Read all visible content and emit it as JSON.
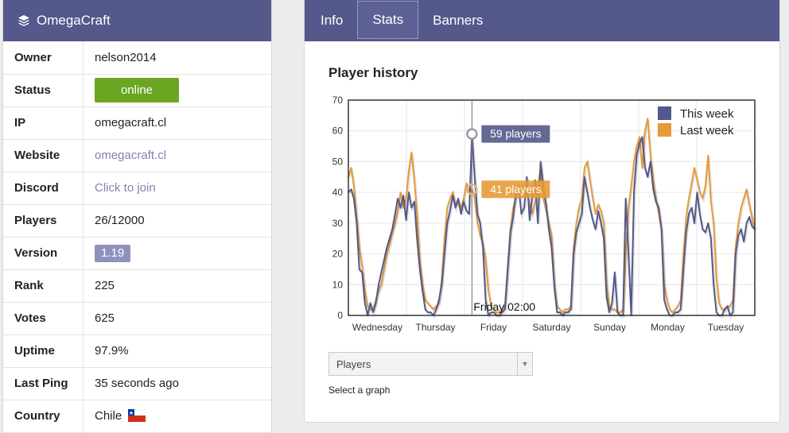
{
  "server": {
    "name": "OmegaCraft"
  },
  "info": [
    {
      "key": "Owner",
      "value": "nelson2014",
      "type": "text"
    },
    {
      "key": "Status",
      "value": "online",
      "type": "status"
    },
    {
      "key": "IP",
      "value": "omegacraft.cl",
      "type": "text"
    },
    {
      "key": "Website",
      "value": "omegacraft.cl",
      "type": "link"
    },
    {
      "key": "Discord",
      "value": "Click to join",
      "type": "link"
    },
    {
      "key": "Players",
      "value": "26/12000",
      "type": "text"
    },
    {
      "key": "Version",
      "value": "1.19",
      "type": "badge"
    },
    {
      "key": "Rank",
      "value": "225",
      "type": "text"
    },
    {
      "key": "Votes",
      "value": "625",
      "type": "text"
    },
    {
      "key": "Uptime",
      "value": "97.9%",
      "type": "text"
    },
    {
      "key": "Last Ping",
      "value": "35 seconds ago",
      "type": "text"
    },
    {
      "key": "Country",
      "value": "Chile",
      "type": "flag"
    }
  ],
  "tabs": [
    {
      "label": "Info",
      "active": false
    },
    {
      "label": "Stats",
      "active": true
    },
    {
      "label": "Banners",
      "active": false
    }
  ],
  "chart_title": "Player history",
  "select": {
    "value": "Players",
    "caption": "Select a graph"
  },
  "colors": {
    "header": "#54588a",
    "this_week": "#54588a",
    "last_week": "#e59b37",
    "status": "#6aa622"
  },
  "chart_data": {
    "type": "line",
    "ylim": [
      0,
      70
    ],
    "yticks": [
      0,
      10,
      20,
      30,
      40,
      50,
      60,
      70
    ],
    "x_labels": [
      "Wednesday",
      "Thursday",
      "Friday",
      "Saturday",
      "Sunday",
      "Monday",
      "Tuesday"
    ],
    "legend": {
      "placement": "top-right"
    },
    "grid": true,
    "series": [
      {
        "name": "This week",
        "values": [
          40,
          41,
          38,
          30,
          15,
          14,
          4,
          0,
          4,
          1,
          4,
          10,
          14,
          18,
          22,
          25,
          28,
          33,
          38,
          35,
          39,
          31,
          40,
          35,
          37,
          25,
          15,
          8,
          2,
          1,
          1,
          0,
          2,
          5,
          10,
          20,
          30,
          34,
          39,
          35,
          38,
          33,
          37,
          34,
          33,
          59,
          45,
          33,
          30,
          22,
          5,
          0,
          1,
          1,
          0,
          0,
          1,
          2,
          15,
          27,
          32,
          40,
          42,
          33,
          35,
          45,
          31,
          39,
          44,
          30,
          50,
          42,
          36,
          28,
          22,
          9,
          1,
          1,
          0,
          1,
          1,
          2,
          20,
          27,
          30,
          33,
          45,
          40,
          35,
          31,
          28,
          34,
          30,
          25,
          6,
          1,
          4,
          14,
          1,
          0,
          0,
          38,
          20,
          0,
          40,
          52,
          56,
          58,
          48,
          45,
          50,
          41,
          37,
          35,
          28,
          5,
          2,
          0,
          0,
          1,
          1,
          2,
          15,
          27,
          33,
          35,
          30,
          40,
          33,
          28,
          27,
          30,
          25,
          10,
          1,
          0,
          0,
          2,
          3,
          0,
          1,
          20,
          26,
          28,
          24,
          30,
          32,
          29,
          28
        ]
      },
      {
        "name": "Last week",
        "values": [
          45,
          48,
          42,
          32,
          22,
          16,
          8,
          3,
          2,
          2,
          5,
          8,
          10,
          15,
          20,
          23,
          27,
          30,
          34,
          40,
          35,
          38,
          47,
          53,
          44,
          33,
          18,
          10,
          5,
          4,
          3,
          2,
          3,
          4,
          12,
          25,
          35,
          38,
          40,
          36,
          37,
          35,
          38,
          43,
          40,
          41,
          38,
          30,
          26,
          23,
          18,
          8,
          3,
          2,
          1,
          1,
          2,
          3,
          16,
          28,
          35,
          38,
          40,
          42,
          39,
          40,
          36,
          33,
          37,
          42,
          48,
          38,
          34,
          30,
          26,
          10,
          3,
          2,
          1,
          2,
          2,
          3,
          22,
          30,
          35,
          38,
          48,
          50,
          44,
          38,
          33,
          36,
          34,
          30,
          10,
          3,
          2,
          2,
          1,
          1,
          2,
          20,
          35,
          42,
          50,
          55,
          58,
          48,
          60,
          64,
          52,
          44,
          38,
          33,
          28,
          10,
          5,
          2,
          1,
          2,
          3,
          5,
          20,
          32,
          38,
          43,
          48,
          44,
          40,
          38,
          42,
          52,
          37,
          30,
          12,
          4,
          2,
          2,
          3,
          3,
          5,
          22,
          30,
          35,
          38,
          41,
          36,
          32,
          28
        ]
      }
    ],
    "tooltips": [
      {
        "label": "59 players",
        "series": "This week"
      },
      {
        "label": "41 players",
        "series": "Last week"
      }
    ],
    "crosshair_label": "Friday 02:00"
  }
}
